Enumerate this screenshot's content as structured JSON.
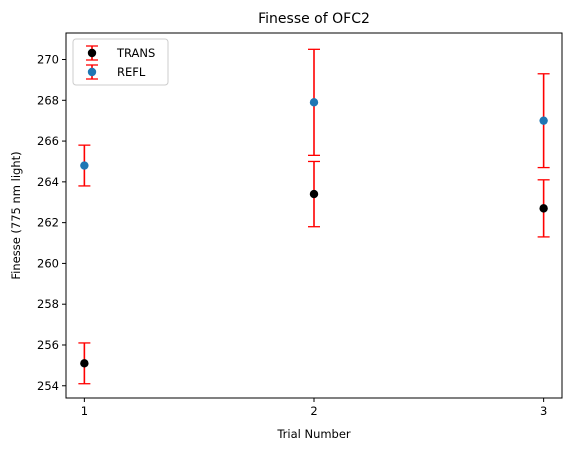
{
  "chart_data": {
    "type": "scatter",
    "title": "Finesse of OFC2",
    "xlabel": "Trial Number",
    "ylabel": "Finesse (775 nm light)",
    "x": [
      1,
      2,
      3
    ],
    "x_tick_labels": [
      "1",
      "2",
      "3"
    ],
    "xlim": [
      0.92,
      3.08
    ],
    "ylim": [
      253.4,
      271.3
    ],
    "y_ticks": [
      254,
      256,
      258,
      260,
      262,
      264,
      266,
      268,
      270
    ],
    "y_tick_labels": [
      "254",
      "256",
      "258",
      "260",
      "262",
      "264",
      "266",
      "268",
      "270"
    ],
    "grid": false,
    "legend_position": "top-left",
    "series": [
      {
        "name": "TRANS",
        "color": "#000000",
        "values": [
          255.1,
          263.4,
          262.7
        ],
        "errors": [
          1.0,
          1.6,
          1.4
        ]
      },
      {
        "name": "REFL",
        "color": "#1f77b4",
        "values": [
          264.8,
          267.9,
          267.0
        ],
        "errors": [
          1.0,
          2.6,
          2.3
        ]
      }
    ],
    "error_bar_color": "#ff0000"
  }
}
